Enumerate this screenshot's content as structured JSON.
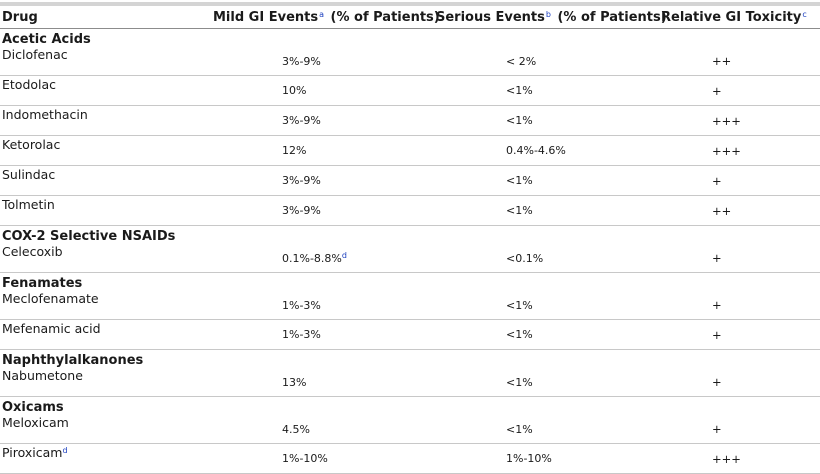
{
  "table": {
    "headers": {
      "drug": "Drug",
      "mild": "Mild GI Events",
      "mild_sup": "a",
      "mild_suffix": " (% of Patients)",
      "serious": "Serious Events",
      "serious_sup": "b",
      "serious_suffix": " (% of Patients)",
      "toxicity": "Relative GI Toxicity",
      "toxicity_sup": "c"
    },
    "groups": [
      {
        "name": "Acetic Acids",
        "rows": [
          {
            "drug": "Diclofenac",
            "drug_sup": "",
            "mild": "3%-9%",
            "mild_sup": "",
            "serious": "< 2%",
            "toxicity": "++"
          },
          {
            "drug": "Etodolac",
            "drug_sup": "",
            "mild": "10%",
            "mild_sup": "",
            "serious": "<1%",
            "toxicity": "+"
          },
          {
            "drug": "Indomethacin",
            "drug_sup": "",
            "mild": "3%-9%",
            "mild_sup": "",
            "serious": "<1%",
            "toxicity": "+++"
          },
          {
            "drug": "Ketorolac",
            "drug_sup": "",
            "mild": "12%",
            "mild_sup": "",
            "serious": "0.4%-4.6%",
            "toxicity": "+++"
          },
          {
            "drug": "Sulindac",
            "drug_sup": "",
            "mild": "3%-9%",
            "mild_sup": "",
            "serious": "<1%",
            "toxicity": "+"
          },
          {
            "drug": "Tolmetin",
            "drug_sup": "",
            "mild": "3%-9%",
            "mild_sup": "",
            "serious": "<1%",
            "toxicity": "++"
          }
        ]
      },
      {
        "name": "COX-2 Selective NSAIDs",
        "rows": [
          {
            "drug": "Celecoxib",
            "drug_sup": "",
            "mild": "0.1%-8.8%",
            "mild_sup": "d",
            "serious": "<0.1%",
            "toxicity": "+"
          }
        ]
      },
      {
        "name": "Fenamates",
        "rows": [
          {
            "drug": "Meclofenamate",
            "drug_sup": "",
            "mild": "1%-3%",
            "mild_sup": "",
            "serious": "<1%",
            "toxicity": "+"
          },
          {
            "drug": "Mefenamic acid",
            "drug_sup": "",
            "mild": "1%-3%",
            "mild_sup": "",
            "serious": "<1%",
            "toxicity": "+"
          }
        ]
      },
      {
        "name": "Naphthylalkanones",
        "rows": [
          {
            "drug": "Nabumetone",
            "drug_sup": "",
            "mild": "13%",
            "mild_sup": "",
            "serious": "<1%",
            "toxicity": "+"
          }
        ]
      },
      {
        "name": "Oxicams",
        "rows": [
          {
            "drug": "Meloxicam",
            "drug_sup": "",
            "mild": "4.5%",
            "mild_sup": "",
            "serious": "<1%",
            "toxicity": "+"
          },
          {
            "drug": "Piroxicam",
            "drug_sup": "d",
            "mild": "1%-10%",
            "mild_sup": "",
            "serious": "1%-10%",
            "toxicity": "+++"
          }
        ]
      }
    ]
  }
}
